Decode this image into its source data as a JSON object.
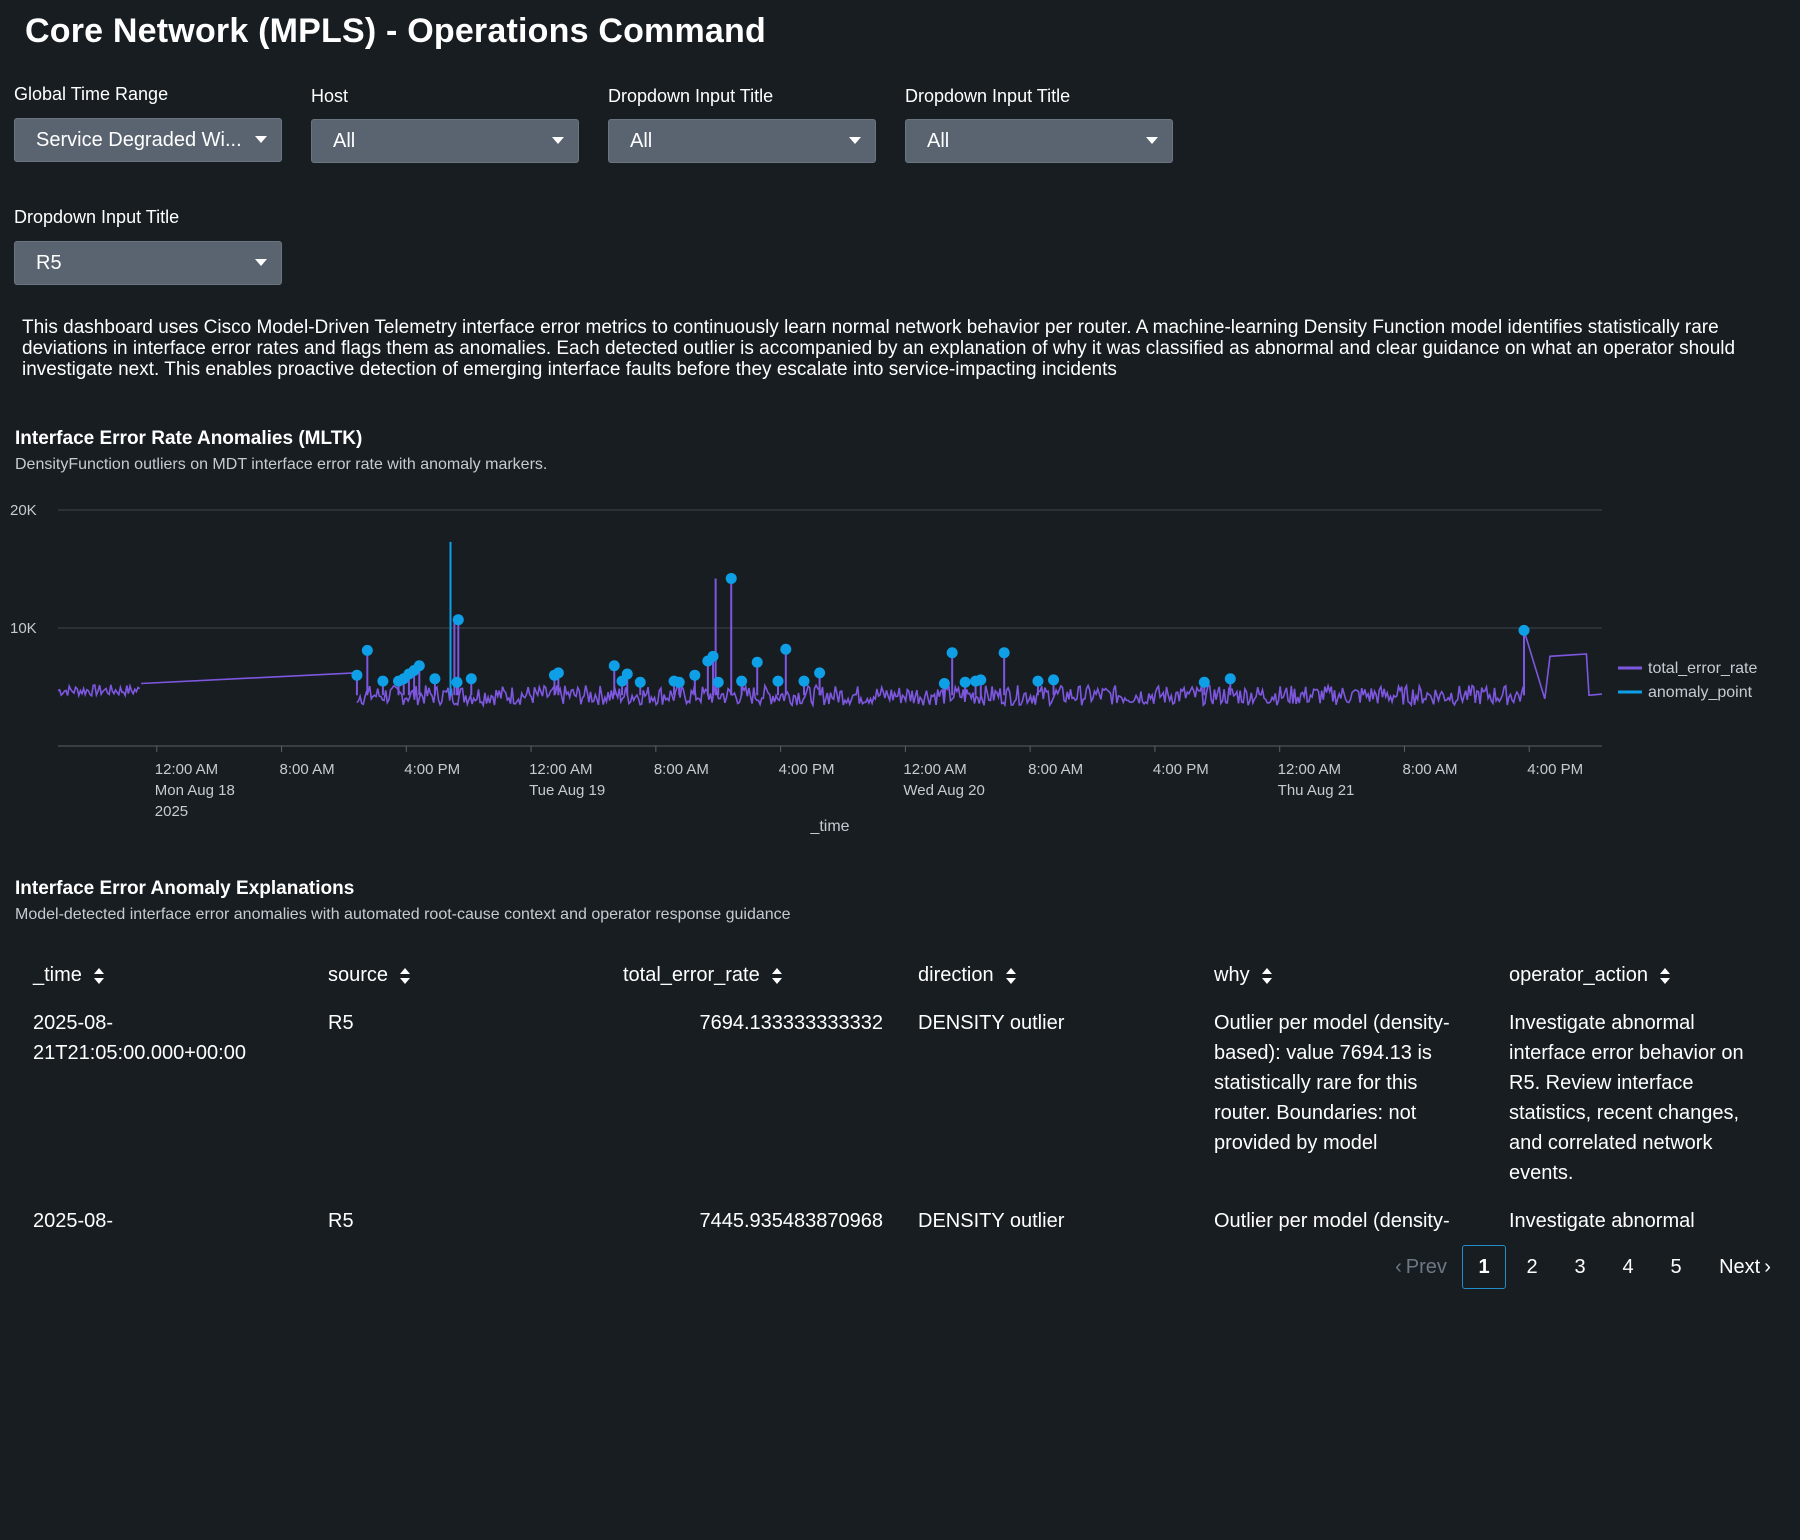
{
  "header": {
    "title": "Core Network (MPLS) - Operations Command"
  },
  "inputs": [
    {
      "label": "Global Time Range",
      "value": "Service Degraded Wi..."
    },
    {
      "label": "Host",
      "value": "All"
    },
    {
      "label": "Dropdown Input Title",
      "value": "All"
    },
    {
      "label": "Dropdown Input Title",
      "value": "All"
    },
    {
      "label": "Dropdown Input Title",
      "value": "R5"
    }
  ],
  "description": "This dashboard uses Cisco Model-Driven Telemetry interface error metrics to continuously learn normal network behavior per router. A machine-learning Density Function model identifies statistically rare deviations in interface error rates and flags them as anomalies. Each detected outlier is accompanied by an explanation of why it was classified as abnormal and clear guidance on what an operator should investigate next. This enables proactive detection of emerging interface faults before they escalate into service-impacting incidents",
  "chart_panel": {
    "title": "Interface Error Rate Anomalies (MLTK)",
    "subtitle": "DensityFunction outliers on MDT interface error rate with anomaly markers."
  },
  "chart_data": {
    "type": "line",
    "xlabel": "_time",
    "ylabel": "",
    "ylim": [
      0,
      20000
    ],
    "y_ticks": [
      "20K",
      "10K"
    ],
    "x_ticks": [
      [
        "12:00 AM",
        "Mon Aug 18",
        "2025"
      ],
      [
        "8:00 AM"
      ],
      [
        "4:00 PM"
      ],
      [
        "12:00 AM",
        "Tue Aug 19"
      ],
      [
        "8:00 AM"
      ],
      [
        "4:00 PM"
      ],
      [
        "12:00 AM",
        "Wed Aug 20"
      ],
      [
        "8:00 AM"
      ],
      [
        "4:00 PM"
      ],
      [
        "12:00 AM",
        "Thu Aug 21"
      ],
      [
        "8:00 AM"
      ],
      [
        "4:00 PM"
      ]
    ],
    "grid": true,
    "legend_position": "right",
    "series": [
      {
        "name": "total_error_rate",
        "color": "#7e57e0",
        "baseline": 4300,
        "segments": [
          {
            "x": [
              "2025-08-17T17:40",
              "2025-08-17T23:00"
            ],
            "y": [
              4700,
              4500
            ]
          },
          {
            "x": [
              "2025-08-17T23:00",
              "2025-08-18T12:50"
            ],
            "y": [
              5300,
              6200
            ]
          },
          {
            "x": [
              "2025-08-18T12:50",
              "2025-08-21T15:40"
            ],
            "y": [
              4300,
              4300
            ]
          },
          {
            "x": [
              "2025-08-21T15:40",
              "2025-08-21T17:00",
              "2025-08-21T17:20",
              "2025-08-21T19:40",
              "2025-08-21T19:50",
              "2025-08-21T20:40"
            ],
            "y": [
              9800,
              4000,
              7600,
              7800,
              4300,
              4400
            ]
          }
        ],
        "spikes": [
          {
            "x": "2025-08-18T19:05",
            "y": 11000
          },
          {
            "x": "2025-08-19T11:50",
            "y": 14200
          },
          {
            "x": "2025-08-21T15:40",
            "y": 9800
          }
        ]
      },
      {
        "name": "anomaly_point",
        "color": "#0e9fe6",
        "spikes": [
          {
            "x": "2025-08-18T18:50",
            "y": 17300
          }
        ],
        "points": [
          {
            "x": "2025-08-18T12:50",
            "y": 6000
          },
          {
            "x": "2025-08-18T13:30",
            "y": 8100
          },
          {
            "x": "2025-08-18T14:30",
            "y": 5500
          },
          {
            "x": "2025-08-18T15:30",
            "y": 5500
          },
          {
            "x": "2025-08-18T15:50",
            "y": 5700
          },
          {
            "x": "2025-08-18T16:10",
            "y": 6100
          },
          {
            "x": "2025-08-18T16:30",
            "y": 6400
          },
          {
            "x": "2025-08-18T16:50",
            "y": 6800
          },
          {
            "x": "2025-08-18T17:50",
            "y": 5700
          },
          {
            "x": "2025-08-18T19:15",
            "y": 5400
          },
          {
            "x": "2025-08-18T19:20",
            "y": 10700
          },
          {
            "x": "2025-08-18T20:10",
            "y": 5700
          },
          {
            "x": "2025-08-19T01:30",
            "y": 6000
          },
          {
            "x": "2025-08-19T01:45",
            "y": 6200
          },
          {
            "x": "2025-08-19T05:20",
            "y": 6800
          },
          {
            "x": "2025-08-19T05:50",
            "y": 5500
          },
          {
            "x": "2025-08-19T06:10",
            "y": 6100
          },
          {
            "x": "2025-08-19T07:00",
            "y": 5400
          },
          {
            "x": "2025-08-19T09:10",
            "y": 5500
          },
          {
            "x": "2025-08-19T09:30",
            "y": 5400
          },
          {
            "x": "2025-08-19T10:30",
            "y": 6000
          },
          {
            "x": "2025-08-19T11:20",
            "y": 7200
          },
          {
            "x": "2025-08-19T11:40",
            "y": 7600
          },
          {
            "x": "2025-08-19T12:00",
            "y": 5400
          },
          {
            "x": "2025-08-19T12:50",
            "y": 14200
          },
          {
            "x": "2025-08-19T13:30",
            "y": 5500
          },
          {
            "x": "2025-08-19T14:30",
            "y": 7100
          },
          {
            "x": "2025-08-19T15:50",
            "y": 5500
          },
          {
            "x": "2025-08-19T16:20",
            "y": 8200
          },
          {
            "x": "2025-08-19T17:30",
            "y": 5500
          },
          {
            "x": "2025-08-19T18:30",
            "y": 6200
          },
          {
            "x": "2025-08-20T02:30",
            "y": 5300
          },
          {
            "x": "2025-08-20T03:00",
            "y": 7900
          },
          {
            "x": "2025-08-20T03:50",
            "y": 5400
          },
          {
            "x": "2025-08-20T04:30",
            "y": 5500
          },
          {
            "x": "2025-08-20T04:50",
            "y": 5600
          },
          {
            "x": "2025-08-20T06:20",
            "y": 7900
          },
          {
            "x": "2025-08-20T08:30",
            "y": 5500
          },
          {
            "x": "2025-08-20T09:30",
            "y": 5600
          },
          {
            "x": "2025-08-20T19:10",
            "y": 5400
          },
          {
            "x": "2025-08-20T20:50",
            "y": 5700
          },
          {
            "x": "2025-08-21T15:40",
            "y": 9800
          }
        ]
      }
    ]
  },
  "table_panel": {
    "title": "Interface Error Anomaly Explanations",
    "subtitle": "Model-detected interface error anomalies with automated root-cause context and operator response guidance",
    "columns": [
      "_time",
      "source",
      "total_error_rate",
      "direction",
      "why",
      "operator_action"
    ],
    "rows": [
      {
        "time": [
          "2025-08-",
          "21T21:05:00.000+00:00"
        ],
        "source": "R5",
        "total_error_rate": "7694.133333333332",
        "direction": "DENSITY outlier",
        "why": [
          "Outlier per model (density-",
          "based): value 7694.13 is",
          "statistically rare for this",
          "router. Boundaries: not",
          "provided by model"
        ],
        "operator_action": [
          "Investigate abnormal",
          "interface error behavior on",
          "R5. Review interface",
          "statistics, recent changes,",
          "and correlated network",
          "events."
        ]
      },
      {
        "time": [
          "2025-08-"
        ],
        "source": "R5",
        "total_error_rate": "7445.935483870968",
        "direction": "DENSITY outlier",
        "why": [
          "Outlier per model (density-"
        ],
        "operator_action": [
          "Investigate abnormal"
        ]
      }
    ]
  },
  "pagination": {
    "prev": "Prev",
    "pages": [
      "1",
      "2",
      "3",
      "4",
      "5"
    ],
    "active": "1",
    "next": "Next"
  }
}
